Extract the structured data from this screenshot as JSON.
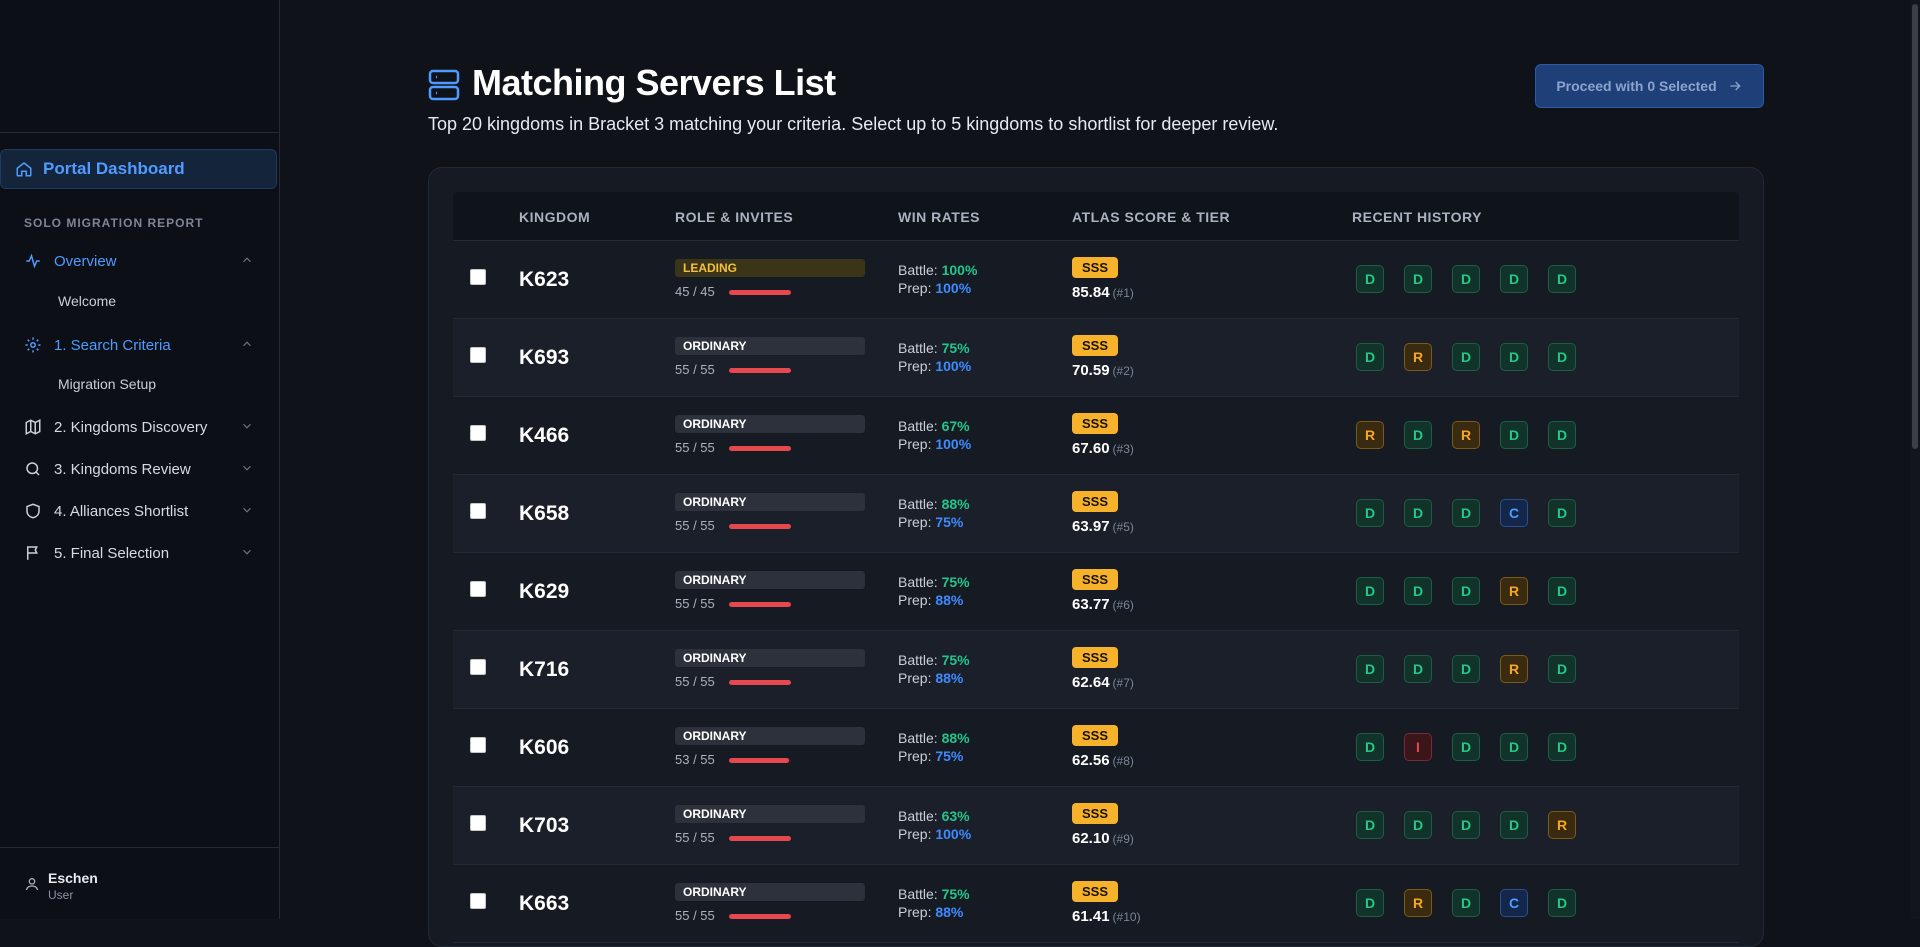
{
  "sidebar": {
    "dashboard_label": "Portal Dashboard",
    "section_label": "SOLO MIGRATION REPORT",
    "items": [
      {
        "label": "Overview",
        "icon": "activity-icon",
        "sub": "Welcome",
        "active": true
      },
      {
        "label": "1. Search Criteria",
        "icon": "gear-icon",
        "sub": "Migration Setup",
        "active": true
      },
      {
        "label": "2. Kingdoms Discovery",
        "icon": "map-icon"
      },
      {
        "label": "3. Kingdoms Review",
        "icon": "search-icon"
      },
      {
        "label": "4. Alliances Shortlist",
        "icon": "shield-icon"
      },
      {
        "label": "5. Final Selection",
        "icon": "flag-icon"
      }
    ],
    "user": {
      "name": "Eschen",
      "role": "User"
    }
  },
  "header": {
    "title": "Matching Servers List",
    "subtitle": "Top 20 kingdoms in Bracket 3 matching your criteria. Select up to 5 kingdoms to shortlist for deeper review.",
    "proceed_label": "Proceed with 0 Selected"
  },
  "table": {
    "columns": [
      "KINGDOM",
      "ROLE & INVITES",
      "WIN RATES",
      "ATLAS SCORE & TIER",
      "RECENT HISTORY"
    ],
    "battle_label": "Battle:",
    "prep_label": "Prep:",
    "rows": [
      {
        "kingdom": "K623",
        "role": "LEADING",
        "invites": "45 / 45",
        "invite_fill": 1.0,
        "battle": "100%",
        "prep": "100%",
        "tier": "SSS",
        "score": "85.84",
        "rank": "(#1)",
        "history": [
          "D",
          "D",
          "D",
          "D",
          "D"
        ]
      },
      {
        "kingdom": "K693",
        "role": "ORDINARY",
        "invites": "55 / 55",
        "invite_fill": 1.0,
        "battle": "75%",
        "prep": "100%",
        "tier": "SSS",
        "score": "70.59",
        "rank": "(#2)",
        "history": [
          "D",
          "R",
          "D",
          "D",
          "D"
        ]
      },
      {
        "kingdom": "K466",
        "role": "ORDINARY",
        "invites": "55 / 55",
        "invite_fill": 1.0,
        "battle": "67%",
        "prep": "100%",
        "tier": "SSS",
        "score": "67.60",
        "rank": "(#3)",
        "history": [
          "R",
          "D",
          "R",
          "D",
          "D"
        ]
      },
      {
        "kingdom": "K658",
        "role": "ORDINARY",
        "invites": "55 / 55",
        "invite_fill": 1.0,
        "battle": "88%",
        "prep": "75%",
        "tier": "SSS",
        "score": "63.97",
        "rank": "(#5)",
        "history": [
          "D",
          "D",
          "D",
          "C",
          "D"
        ]
      },
      {
        "kingdom": "K629",
        "role": "ORDINARY",
        "invites": "55 / 55",
        "invite_fill": 1.0,
        "battle": "75%",
        "prep": "88%",
        "tier": "SSS",
        "score": "63.77",
        "rank": "(#6)",
        "history": [
          "D",
          "D",
          "D",
          "R",
          "D"
        ]
      },
      {
        "kingdom": "K716",
        "role": "ORDINARY",
        "invites": "55 / 55",
        "invite_fill": 1.0,
        "battle": "75%",
        "prep": "88%",
        "tier": "SSS",
        "score": "62.64",
        "rank": "(#7)",
        "history": [
          "D",
          "D",
          "D",
          "R",
          "D"
        ]
      },
      {
        "kingdom": "K606",
        "role": "ORDINARY",
        "invites": "53 / 55",
        "invite_fill": 0.96,
        "battle": "88%",
        "prep": "75%",
        "tier": "SSS",
        "score": "62.56",
        "rank": "(#8)",
        "history": [
          "D",
          "I",
          "D",
          "D",
          "D"
        ]
      },
      {
        "kingdom": "K703",
        "role": "ORDINARY",
        "invites": "55 / 55",
        "invite_fill": 1.0,
        "battle": "63%",
        "prep": "100%",
        "tier": "SSS",
        "score": "62.10",
        "rank": "(#9)",
        "history": [
          "D",
          "D",
          "D",
          "D",
          "R"
        ]
      },
      {
        "kingdom": "K663",
        "role": "ORDINARY",
        "invites": "55 / 55",
        "invite_fill": 1.0,
        "battle": "75%",
        "prep": "88%",
        "tier": "SSS",
        "score": "61.41",
        "rank": "(#10)",
        "history": [
          "D",
          "R",
          "D",
          "C",
          "D"
        ]
      }
    ]
  },
  "colors": {
    "accent": "#4f9bff",
    "win_green": "#22c58b",
    "prep_blue": "#3d8bff",
    "tier_gold": "#f7b22b",
    "invite_red": "#e5484d"
  }
}
